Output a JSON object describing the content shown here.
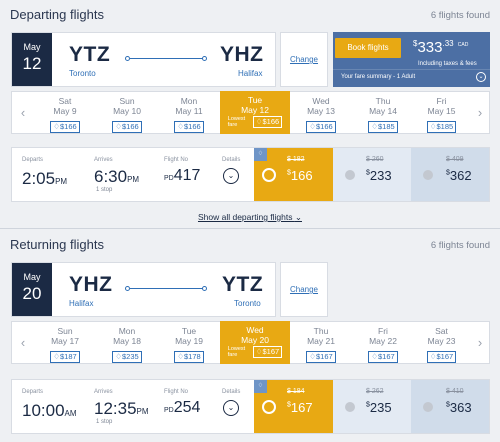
{
  "departing": {
    "title": "Departing flights",
    "count": "6 flights found",
    "date_month": "May",
    "date_day": "12",
    "from_code": "YTZ",
    "from_city": "Toronto",
    "to_code": "YHZ",
    "to_city": "Halifax",
    "change": "Change",
    "book_label": "Book flights",
    "total_prefix": "$",
    "total_main": "333",
    "total_dec": ".33",
    "total_cur": "CAD",
    "taxes": "Including taxes & fees",
    "fare_summary": "Your fare summary - 1 Adult",
    "dates": [
      {
        "dow": "Sat",
        "date": "May 9",
        "price": "$166"
      },
      {
        "dow": "Sun",
        "date": "May 10",
        "price": "$166"
      },
      {
        "dow": "Mon",
        "date": "May 11",
        "price": "$166"
      },
      {
        "dow": "Tue",
        "date": "May 12",
        "price": "$166",
        "lowest": "Lowest fare"
      },
      {
        "dow": "Wed",
        "date": "May 13",
        "price": "$166"
      },
      {
        "dow": "Thu",
        "date": "May 14",
        "price": "$185"
      },
      {
        "dow": "Fri",
        "date": "May 15",
        "price": "$185"
      }
    ],
    "flight": {
      "departs_label": "Departs",
      "departs_time": "2:05",
      "departs_ampm": "PM",
      "arrives_label": "Arrives",
      "arrives_time": "6:30",
      "arrives_ampm": "PM",
      "stops": "1 stop",
      "flightno_label": "Flight No",
      "flight_prefix": "PD",
      "flight_no": "417",
      "details_label": "Details",
      "fares": [
        {
          "old": "$ 182",
          "price": "166"
        },
        {
          "old": "$ 260",
          "price": "233"
        },
        {
          "old": "$ 409",
          "price": "362"
        }
      ]
    },
    "show_all": "Show all departing flights"
  },
  "returning": {
    "title": "Returning flights",
    "count": "6 flights found",
    "date_month": "May",
    "date_day": "20",
    "from_code": "YHZ",
    "from_city": "Halifax",
    "to_code": "YTZ",
    "to_city": "Toronto",
    "change": "Change",
    "dates": [
      {
        "dow": "Sun",
        "date": "May 17",
        "price": "$187"
      },
      {
        "dow": "Mon",
        "date": "May 18",
        "price": "$235"
      },
      {
        "dow": "Tue",
        "date": "May 19",
        "price": "$178"
      },
      {
        "dow": "Wed",
        "date": "May 20",
        "price": "$167",
        "lowest": "Lowest fare"
      },
      {
        "dow": "Thu",
        "date": "May 21",
        "price": "$167"
      },
      {
        "dow": "Fri",
        "date": "May 22",
        "price": "$167"
      },
      {
        "dow": "Sat",
        "date": "May 23",
        "price": "$167"
      }
    ],
    "flight": {
      "departs_label": "Departs",
      "departs_time": "10:00",
      "departs_ampm": "AM",
      "arrives_label": "Arrives",
      "arrives_time": "12:35",
      "arrives_ampm": "PM",
      "stops": "1 stop",
      "flightno_label": "Flight No",
      "flight_prefix": "PD",
      "flight_no": "254",
      "details_label": "Details",
      "fares": [
        {
          "old": "$ 184",
          "price": "167"
        },
        {
          "old": "$ 262",
          "price": "235"
        },
        {
          "old": "$ 410",
          "price": "363"
        }
      ]
    }
  },
  "icons": {
    "prev": "chevron-left-icon",
    "next": "chevron-right-icon",
    "tag": "tag-icon",
    "details": "chevron-down-icon"
  },
  "colors": {
    "navy": "#1b2a44",
    "accent": "#e8a913",
    "link": "#2f6fb6",
    "panel": "#4c6fa4"
  }
}
